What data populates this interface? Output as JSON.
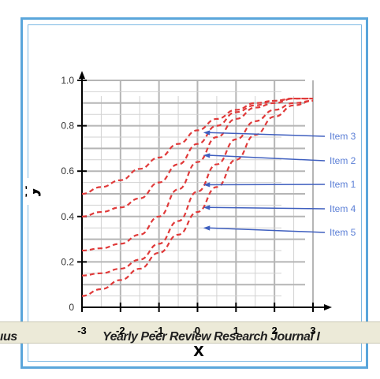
{
  "footer": {
    "left_text": "ıus",
    "journal_text": "Yearly Peer Review Research Journal I"
  },
  "colors": {
    "frame": "#5aa6db",
    "curve": "#e03a3a",
    "arrow": "#3f5fbf",
    "item_label": "#5b7fd6",
    "grid": "#b5b5b5",
    "axis": "#000000"
  },
  "chart_data": {
    "type": "line",
    "title": "",
    "xlabel": "x",
    "ylabel": "y",
    "xlim": [
      -3,
      3
    ],
    "ylim": [
      0,
      1.0
    ],
    "x_ticks": [
      "-3",
      "-2",
      "-1",
      "0",
      "1",
      "2",
      "3"
    ],
    "y_ticks": [
      "0",
      "0.2",
      "0.4",
      "0.6",
      "0.8",
      "1.0"
    ],
    "grid": true,
    "line_style": "dashed",
    "x": [
      -3,
      -2.5,
      -2,
      -1.5,
      -1,
      -0.5,
      0,
      0.5,
      1,
      1.5,
      2,
      2.5,
      3
    ],
    "series": [
      {
        "name": "Item 3",
        "values": [
          0.5,
          0.53,
          0.56,
          0.61,
          0.66,
          0.72,
          0.78,
          0.83,
          0.87,
          0.9,
          0.91,
          0.92,
          0.92
        ]
      },
      {
        "name": "Item 2",
        "values": [
          0.4,
          0.42,
          0.44,
          0.48,
          0.55,
          0.63,
          0.72,
          0.8,
          0.86,
          0.89,
          0.91,
          0.92,
          0.92
        ]
      },
      {
        "name": "Item 1",
        "values": [
          0.25,
          0.26,
          0.28,
          0.32,
          0.4,
          0.52,
          0.64,
          0.75,
          0.83,
          0.88,
          0.9,
          0.92,
          0.92
        ]
      },
      {
        "name": "Item 4",
        "values": [
          0.14,
          0.15,
          0.17,
          0.21,
          0.28,
          0.38,
          0.51,
          0.63,
          0.74,
          0.82,
          0.87,
          0.9,
          0.91
        ]
      },
      {
        "name": "Item 5",
        "values": [
          0.05,
          0.08,
          0.12,
          0.17,
          0.24,
          0.32,
          0.42,
          0.53,
          0.65,
          0.76,
          0.84,
          0.89,
          0.91
        ]
      }
    ],
    "annotations": [
      {
        "label": "Item 3",
        "target": [
          0.15,
          0.77
        ]
      },
      {
        "label": "Item 2",
        "target": [
          0.15,
          0.67
        ]
      },
      {
        "label": "Item 1",
        "target": [
          0.15,
          0.54
        ]
      },
      {
        "label": "Item 4",
        "target": [
          0.15,
          0.44
        ]
      },
      {
        "label": "Item 5",
        "target": [
          0.15,
          0.35
        ]
      }
    ]
  }
}
